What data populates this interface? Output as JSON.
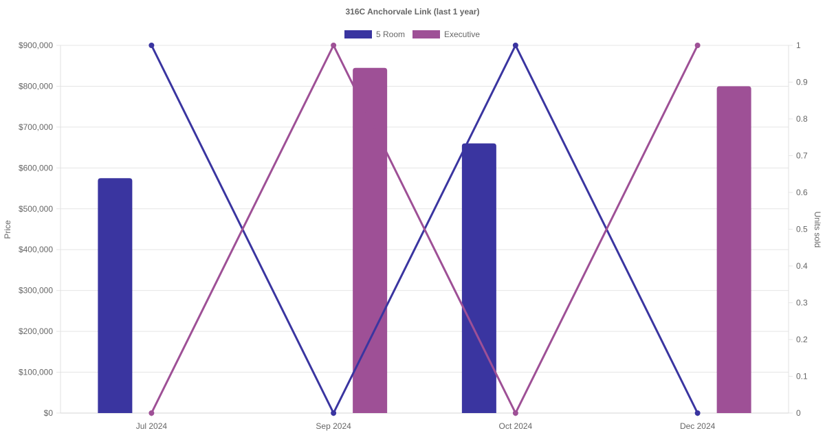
{
  "chart_data": {
    "type": "bar",
    "title": "316C Anchorvale Link (last 1 year)",
    "categories": [
      "Jul 2024",
      "Sep 2024",
      "Oct 2024",
      "Dec 2024"
    ],
    "series": [
      {
        "name": "5 Room",
        "color": "#3a35a0",
        "price": [
          575000,
          null,
          660000,
          null
        ],
        "units_sold": [
          1,
          0,
          1,
          0
        ]
      },
      {
        "name": "Executive",
        "color": "#9e5096",
        "price": [
          null,
          845000,
          null,
          800000
        ],
        "units_sold": [
          0,
          1,
          0,
          1
        ]
      }
    ],
    "y_left": {
      "label": "Price",
      "range": [
        0,
        900000
      ],
      "ticks": [
        "$0",
        "$100,000",
        "$200,000",
        "$300,000",
        "$400,000",
        "$500,000",
        "$600,000",
        "$700,000",
        "$800,000",
        "$900,000"
      ]
    },
    "y_right": {
      "label": "Units sold",
      "range": [
        0,
        1
      ],
      "ticks": [
        "0",
        "0.1",
        "0.2",
        "0.3",
        "0.4",
        "0.5",
        "0.6",
        "0.7",
        "0.8",
        "0.9",
        "1"
      ]
    },
    "grid": true,
    "legend": "top-center"
  }
}
